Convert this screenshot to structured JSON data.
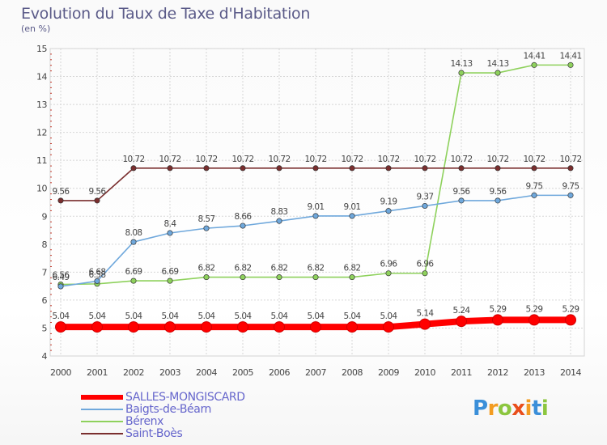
{
  "header": {
    "title": "Evolution du Taux de Taxe d'Habitation",
    "unit": "(en %)"
  },
  "logo": {
    "letters": [
      "P",
      "r",
      "o",
      "x",
      "i",
      "t",
      "i"
    ],
    "colors": [
      "#3b8fd9",
      "#f39c21",
      "#8cc63f",
      "#e94e1b",
      "#f39c21",
      "#3b8fd9",
      "#8cc63f"
    ]
  },
  "chart_data": {
    "type": "line",
    "categories": [
      "2000",
      "2001",
      "2002",
      "2003",
      "2004",
      "2005",
      "2006",
      "2007",
      "2008",
      "2009",
      "2010",
      "2011",
      "2012",
      "2013",
      "2014"
    ],
    "ylim": [
      4,
      15
    ],
    "yticks": [
      "4",
      "5",
      "6",
      "7",
      "8",
      "9",
      "10",
      "11",
      "12",
      "13",
      "14",
      "15"
    ],
    "grid": true,
    "legend_position": "bottom-left",
    "series": [
      {
        "name": "SALLES-MONGISCARD",
        "color": "#ff0000",
        "values": [
          5.04,
          5.04,
          5.04,
          5.04,
          5.04,
          5.04,
          5.04,
          5.04,
          5.04,
          5.04,
          5.14,
          5.24,
          5.29,
          5.29,
          5.29
        ],
        "labels": [
          "5.04",
          "5.04",
          "5.04",
          "5.04",
          "5.04",
          "5.04",
          "5.04",
          "5.04",
          "5.04",
          "5.04",
          "5.14",
          "5.24",
          "5.29",
          "5.29",
          "5.29"
        ]
      },
      {
        "name": "Baigts-de-Béarn",
        "color": "#6fa8dc",
        "values": [
          6.49,
          6.68,
          8.08,
          8.4,
          8.57,
          8.66,
          8.83,
          9.01,
          9.01,
          9.19,
          9.37,
          9.56,
          9.56,
          9.75,
          9.75
        ],
        "labels": [
          "6.49",
          "6.68",
          "8.08",
          "8.4",
          "8.57",
          "8.66",
          "8.83",
          "9.01",
          "9.01",
          "9.19",
          "9.37",
          "9.56",
          "9.56",
          "9.75",
          "9.75"
        ]
      },
      {
        "name": "Bérenx",
        "color": "#8ed15c",
        "values": [
          6.56,
          6.58,
          6.69,
          6.69,
          6.82,
          6.82,
          6.82,
          6.82,
          6.82,
          6.96,
          6.96,
          14.13,
          14.13,
          14.41,
          14.41
        ],
        "labels": [
          "6.56",
          "6.58",
          "6.69",
          "6.69",
          "6.82",
          "6.82",
          "6.82",
          "6.82",
          "6.82",
          "6.96",
          "6.96",
          "14.13",
          "14.13",
          "14.41",
          "14.41"
        ]
      },
      {
        "name": "Saint-Boès",
        "color": "#7a2e2e",
        "values": [
          9.56,
          9.56,
          10.72,
          10.72,
          10.72,
          10.72,
          10.72,
          10.72,
          10.72,
          10.72,
          10.72,
          10.72,
          10.72,
          10.72,
          10.72
        ],
        "labels": [
          "9.56",
          "9.56",
          "10.72",
          "10.72",
          "10.72",
          "10.72",
          "10.72",
          "10.72",
          "10.72",
          "10.72",
          "10.72",
          "10.72",
          "10.72",
          "10.72",
          "10.72"
        ]
      }
    ]
  }
}
